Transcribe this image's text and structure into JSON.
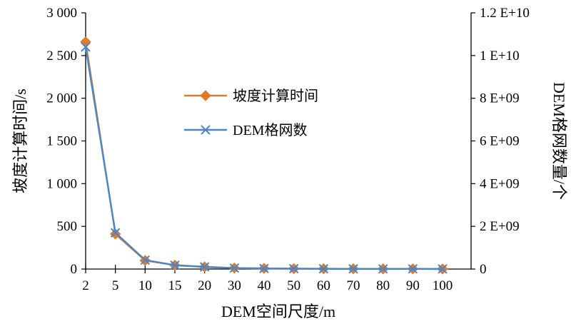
{
  "chart_data": {
    "type": "line",
    "categories": [
      "2",
      "5",
      "10",
      "15",
      "20",
      "30",
      "40",
      "50",
      "60",
      "70",
      "80",
      "90",
      "100"
    ],
    "xlabel": "DEM空间尺度/m",
    "ylabel_left": "坡度计算时间/s",
    "ylabel_right": "DEM格网数量/个",
    "y_left": {
      "lim": [
        0,
        3000
      ],
      "ticks": [
        0,
        500,
        1000,
        1500,
        2000,
        2500,
        3000
      ],
      "tick_labels": [
        "0",
        "500",
        "1 000",
        "1 500",
        "2 000",
        "2 500",
        "3 000"
      ]
    },
    "y_right": {
      "lim": [
        0,
        12000000000
      ],
      "ticks": [
        0,
        2000000000,
        4000000000,
        6000000000,
        8000000000,
        10000000000,
        12000000000
      ],
      "tick_labels": [
        "0",
        "2 E+09",
        "4 E+09",
        "6 E+09",
        "8 E+09",
        "1 E+10",
        "1.2 E+10"
      ]
    },
    "series": [
      {
        "name": "坡度计算时间",
        "axis": "left",
        "color": "#E07B2A",
        "marker": "diamond",
        "values": [
          2660,
          410,
          100,
          45,
          25,
          12,
          8,
          5,
          4,
          3,
          2,
          2,
          1
        ]
      },
      {
        "name": "DEM格网数",
        "axis": "right",
        "color": "#4A86C8",
        "marker": "x",
        "values": [
          10400000000,
          1700000000,
          420000000,
          180000000,
          100000000,
          45000000,
          25000000,
          17000000,
          12000000,
          8500000,
          6500000,
          5100000,
          4200000
        ]
      }
    ],
    "legend_position": "upper-center",
    "grid": false
  }
}
